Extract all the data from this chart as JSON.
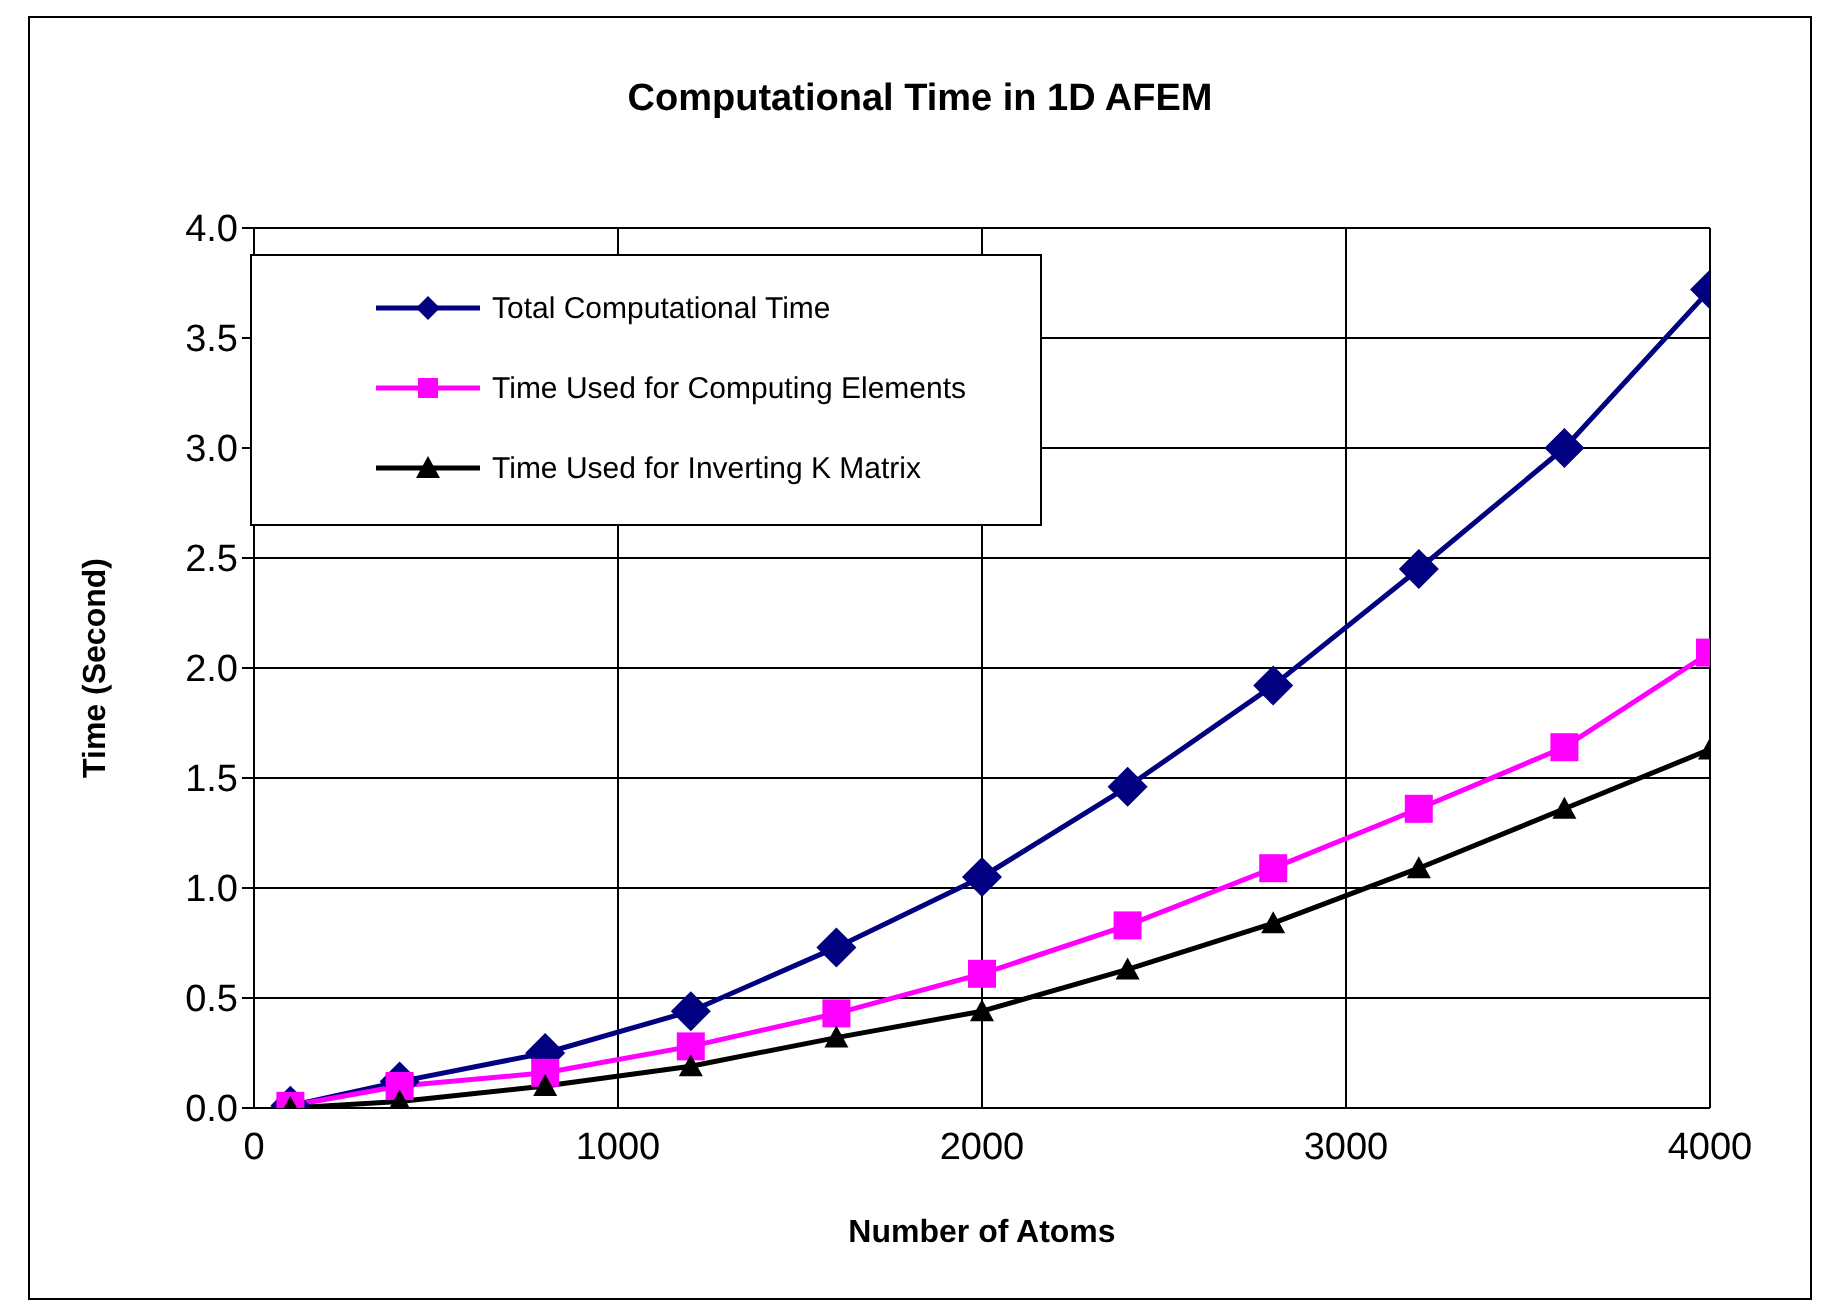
{
  "chart_data": {
    "type": "line",
    "title": "Computational Time in 1D AFEM",
    "xlabel": "Number of Atoms",
    "ylabel": "Time (Second)",
    "x": [
      100,
      400,
      800,
      1200,
      1600,
      2000,
      2400,
      2800,
      3200,
      3600,
      4000
    ],
    "series": [
      {
        "name": "Total Computational Time",
        "color": "#000080",
        "marker": "diamond",
        "values": [
          0.01,
          0.12,
          0.25,
          0.44,
          0.73,
          1.05,
          1.46,
          1.92,
          2.45,
          3.0,
          3.72
        ]
      },
      {
        "name": "Time Used for Computing Elements",
        "color": "#ff00ff",
        "marker": "square",
        "values": [
          0.01,
          0.1,
          0.16,
          0.28,
          0.43,
          0.61,
          0.83,
          1.09,
          1.36,
          1.64,
          2.07
        ]
      },
      {
        "name": "Time Used for Inverting K Matrix",
        "color": "#000000",
        "marker": "triangle",
        "values": [
          0.0,
          0.03,
          0.1,
          0.19,
          0.32,
          0.44,
          0.63,
          0.84,
          1.09,
          1.36,
          1.63
        ]
      }
    ],
    "xlim": [
      0,
      4000
    ],
    "xticks": [
      0,
      1000,
      2000,
      3000,
      4000
    ],
    "ylim": [
      0,
      4.0
    ],
    "yticks": [
      {
        "value": 0,
        "label": "0.0"
      },
      {
        "value": 0.5,
        "label": "0.5"
      },
      {
        "value": 1,
        "label": "1.0"
      },
      {
        "value": 1.5,
        "label": "1.5"
      },
      {
        "value": 2,
        "label": "2.0"
      },
      {
        "value": 2.5,
        "label": "2.5"
      },
      {
        "value": 3,
        "label": "3.0"
      },
      {
        "value": 3.5,
        "label": "3.5"
      },
      {
        "value": 4,
        "label": "4.0"
      }
    ],
    "grid": true,
    "legend": "top left",
    "line_style": "solid"
  }
}
